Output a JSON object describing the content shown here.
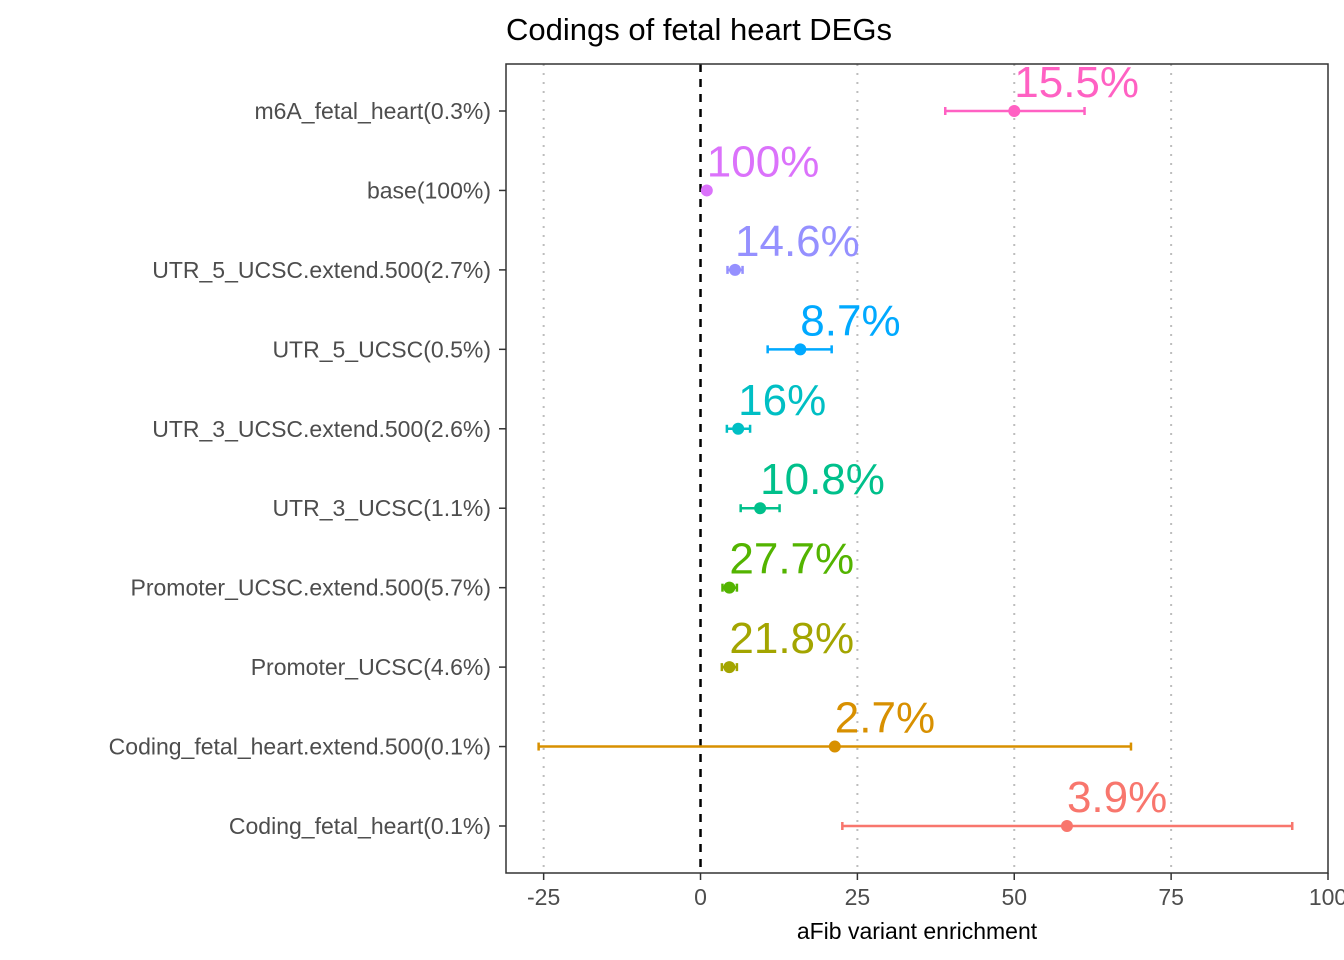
{
  "chart_data": {
    "type": "scatter",
    "title": "Codings of fetal heart DEGs",
    "xlabel": "aFib variant enrichment",
    "ylabel": "",
    "xlim": [
      -31,
      100
    ],
    "xticks": [
      -25,
      0,
      25,
      50,
      75,
      100
    ],
    "xtick_labels": [
      "-25",
      "0",
      "25",
      "50",
      "75",
      "100"
    ],
    "grid": "vertical dotted at x ticks",
    "reference_line": {
      "x": 0,
      "style": "dashed"
    },
    "legend": "none",
    "categories": [
      "m6A_fetal_heart(0.3%)",
      "base(100%)",
      "UTR_5_UCSC.extend.500(2.7%)",
      "UTR_5_UCSC(0.5%)",
      "UTR_3_UCSC.extend.500(2.6%)",
      "UTR_3_UCSC(1.1%)",
      "Promoter_UCSC.extend.500(5.7%)",
      "Promoter_UCSC(4.6%)",
      "Coding_fetal_heart.extend.500(0.1%)",
      "Coding_fetal_heart(0.1%)"
    ],
    "points": [
      {
        "category": "m6A_fetal_heart(0.3%)",
        "x": 50.0,
        "xmin": 39.0,
        "xmax": 61.2,
        "label": "15.5%",
        "color": "#FF61C3"
      },
      {
        "category": "base(100%)",
        "x": 1.0,
        "xmin": 1.0,
        "xmax": 1.0,
        "label": "100%",
        "color": "#DB72FB"
      },
      {
        "category": "UTR_5_UCSC.extend.500(2.7%)",
        "x": 5.5,
        "xmin": 4.3,
        "xmax": 6.7,
        "label": "14.6%",
        "color": "#9590FF"
      },
      {
        "category": "UTR_5_UCSC(0.5%)",
        "x": 15.9,
        "xmin": 10.7,
        "xmax": 20.9,
        "label": "8.7%",
        "color": "#00A9FF"
      },
      {
        "category": "UTR_3_UCSC.extend.500(2.6%)",
        "x": 6.0,
        "xmin": 4.2,
        "xmax": 7.9,
        "label": "16%",
        "color": "#00BFC4"
      },
      {
        "category": "UTR_3_UCSC(1.1%)",
        "x": 9.5,
        "xmin": 6.4,
        "xmax": 12.6,
        "label": "10.8%",
        "color": "#00C08B"
      },
      {
        "category": "Promoter_UCSC.extend.500(5.7%)",
        "x": 4.6,
        "xmin": 3.5,
        "xmax": 5.8,
        "label": "27.7%",
        "color": "#53B400"
      },
      {
        "category": "Promoter_UCSC(4.6%)",
        "x": 4.6,
        "xmin": 3.4,
        "xmax": 5.8,
        "label": "21.8%",
        "color": "#A3A500"
      },
      {
        "category": "Coding_fetal_heart.extend.500(0.1%)",
        "x": 21.4,
        "xmin": -25.8,
        "xmax": 68.6,
        "label": "2.7%",
        "color": "#D89000"
      },
      {
        "category": "Coding_fetal_heart(0.1%)",
        "x": 58.4,
        "xmin": 22.6,
        "xmax": 94.3,
        "label": "3.9%",
        "color": "#F8766D"
      }
    ]
  }
}
